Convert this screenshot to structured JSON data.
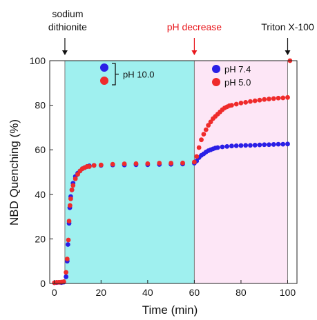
{
  "chart_data": {
    "type": "scatter",
    "title": "",
    "xlabel": "Time (min)",
    "ylabel": "NBD Quenching (%)",
    "xlim": [
      -2,
      104
    ],
    "ylim": [
      0,
      100
    ],
    "xticks": [
      "0",
      "20",
      "40",
      "60",
      "80",
      "100"
    ],
    "yticks": [
      "0",
      "20",
      "40",
      "60",
      "80",
      "100"
    ],
    "colors": {
      "blue": "#2a1fe6",
      "red": "#ef2b2b",
      "cyan_region": "#9ff0ef",
      "pink_region": "#fde6f6"
    },
    "regions": [
      {
        "from": 4.5,
        "to": 60,
        "color": "cyan"
      },
      {
        "from": 60,
        "to": 100,
        "color": "pink"
      }
    ],
    "annotations": [
      {
        "text": "sodium\ndithionite",
        "x": 4.5,
        "color": "#111111"
      },
      {
        "text": "pH decrease",
        "x": 60,
        "color": "#e8161b"
      },
      {
        "text": "Triton X-100",
        "x": 100,
        "color": "#111111"
      }
    ],
    "legend": {
      "left": {
        "label": "pH 10.0",
        "series": [
          "blue",
          "red"
        ]
      },
      "right": [
        {
          "label": "pH 7.4",
          "series": "blue"
        },
        {
          "label": "pH 5.0",
          "series": "red"
        }
      ]
    },
    "series": [
      {
        "name": "pH 7.4",
        "color": "blue",
        "points": [
          [
            0,
            0.3
          ],
          [
            1,
            0.4
          ],
          [
            2,
            0.5
          ],
          [
            3,
            0.4
          ],
          [
            4,
            0.6
          ],
          [
            5,
            3
          ],
          [
            5.5,
            10
          ],
          [
            5.8,
            17.5
          ],
          [
            6.3,
            27
          ],
          [
            6.6,
            34
          ],
          [
            7,
            39
          ],
          [
            7.5,
            42
          ],
          [
            8,
            45
          ],
          [
            9,
            48
          ],
          [
            10,
            49.5
          ],
          [
            11,
            50.5
          ],
          [
            12,
            51.5
          ],
          [
            13,
            52
          ],
          [
            14,
            52.5
          ],
          [
            15,
            52.8
          ],
          [
            17,
            53
          ],
          [
            20,
            53
          ],
          [
            25,
            53.2
          ],
          [
            30,
            53.2
          ],
          [
            35,
            53.3
          ],
          [
            40,
            53.3
          ],
          [
            45,
            53.4
          ],
          [
            50,
            53.5
          ],
          [
            55,
            53.6
          ],
          [
            60,
            54
          ],
          [
            61,
            55
          ],
          [
            62,
            56.5
          ],
          [
            63,
            57.5
          ],
          [
            64,
            58.2
          ],
          [
            65,
            59
          ],
          [
            66,
            59.6
          ],
          [
            67,
            60
          ],
          [
            68,
            60.4
          ],
          [
            69,
            60.8
          ],
          [
            70,
            61
          ],
          [
            72,
            61.3
          ],
          [
            74,
            61.5
          ],
          [
            76,
            61.7
          ],
          [
            78,
            61.8
          ],
          [
            80,
            61.9
          ],
          [
            82,
            62
          ],
          [
            84,
            62
          ],
          [
            86,
            62.1
          ],
          [
            88,
            62.2
          ],
          [
            90,
            62.3
          ],
          [
            92,
            62.3
          ],
          [
            94,
            62.4
          ],
          [
            96,
            62.5
          ],
          [
            98,
            62.5
          ],
          [
            100,
            62.6
          ]
        ]
      },
      {
        "name": "pH 5.0",
        "color": "red",
        "points": [
          [
            0,
            0.3
          ],
          [
            1,
            0.5
          ],
          [
            2,
            0.5
          ],
          [
            3,
            0.6
          ],
          [
            4,
            0.8
          ],
          [
            5,
            5
          ],
          [
            5.5,
            11
          ],
          [
            6,
            19.5
          ],
          [
            6.3,
            28
          ],
          [
            6.7,
            35
          ],
          [
            7,
            38
          ],
          [
            7.5,
            42
          ],
          [
            8,
            44
          ],
          [
            9,
            47
          ],
          [
            10,
            49
          ],
          [
            11,
            50.5
          ],
          [
            12,
            51.5
          ],
          [
            13,
            52
          ],
          [
            14,
            52.5
          ],
          [
            15,
            52.5
          ],
          [
            17,
            53
          ],
          [
            20,
            53.2
          ],
          [
            25,
            53.5
          ],
          [
            30,
            53.7
          ],
          [
            35,
            53.8
          ],
          [
            40,
            53.8
          ],
          [
            45,
            54
          ],
          [
            50,
            54
          ],
          [
            55,
            54.1
          ],
          [
            60,
            54.5
          ],
          [
            61,
            57
          ],
          [
            62,
            61
          ],
          [
            63,
            64.5
          ],
          [
            64,
            67
          ],
          [
            65,
            69
          ],
          [
            66,
            71
          ],
          [
            67,
            72.5
          ],
          [
            68,
            74
          ],
          [
            69,
            75
          ],
          [
            70,
            76
          ],
          [
            71,
            77
          ],
          [
            72,
            78
          ],
          [
            73,
            78.8
          ],
          [
            74,
            79.3
          ],
          [
            75,
            79.8
          ],
          [
            76,
            80
          ],
          [
            78,
            80.5
          ],
          [
            80,
            81
          ],
          [
            82,
            81.3
          ],
          [
            84,
            81.7
          ],
          [
            86,
            82
          ],
          [
            88,
            82.3
          ],
          [
            90,
            82.6
          ],
          [
            92,
            82.8
          ],
          [
            94,
            83
          ],
          [
            96,
            83.2
          ],
          [
            98,
            83.3
          ],
          [
            100,
            83.5
          ],
          [
            101,
            100
          ]
        ]
      }
    ]
  }
}
